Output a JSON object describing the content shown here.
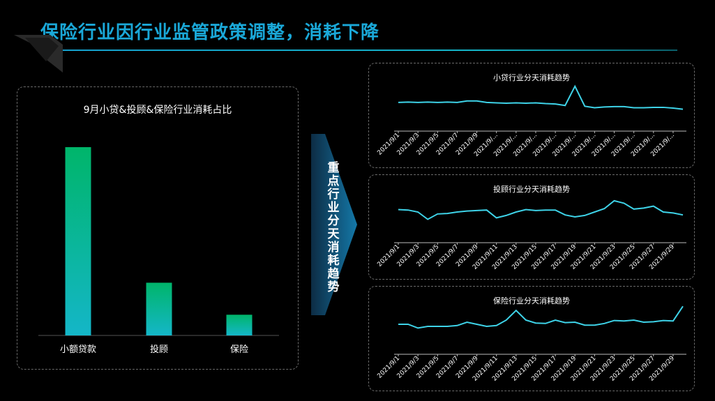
{
  "page": {
    "title": "保险行业因行业监管政策调整，消耗下降",
    "arrow_text": "重点行业分天消耗趋势"
  },
  "colors": {
    "accent": "#1aa8d8",
    "line": "#3ed3e8",
    "bar_top": "#00b56a",
    "bar_bottom": "#14b6c8"
  },
  "chart_data": [
    {
      "type": "bar",
      "title": "9月小贷&投顾&保险行业消耗占比",
      "categories": [
        "小额贷款",
        "投顾",
        "保险"
      ],
      "values": [
        100,
        28,
        11
      ]
    },
    {
      "type": "line",
      "title": "小贷行业分天消耗趋势",
      "x": [
        "2021/9/1",
        "2021/9/2",
        "2021/9/3",
        "2021/9/4",
        "2021/9/5",
        "2021/9/6",
        "2021/9/7",
        "2021/9/8",
        "2021/9/9",
        "2021/9/10",
        "2021/9/11",
        "2021/9/12",
        "2021/9/13",
        "2021/9/14",
        "2021/9/15",
        "2021/9/16",
        "2021/9/17",
        "2021/9/18",
        "2021/9/19",
        "2021/9/20",
        "2021/9/21",
        "2021/9/22",
        "2021/9/23",
        "2021/9/24",
        "2021/9/25",
        "2021/9/26",
        "2021/9/27",
        "2021/9/28",
        "2021/9/29",
        "2021/9/30"
      ],
      "x_tick_labels": [
        "2021/9/1",
        "2021/9/3",
        "2021/9/5",
        "2021/9/7",
        "2021/9/9",
        "2021/9/...",
        "2021/9/...",
        "2021/9/...",
        "2021/9/...",
        "2021/9/...",
        "2021/9/...",
        "2021/9/...",
        "2021/9/...",
        "2021/9/...",
        "2021/9/..."
      ],
      "values": [
        52,
        53,
        52,
        53,
        52,
        53,
        52,
        56,
        56,
        52,
        51,
        50,
        51,
        50,
        51,
        49,
        48,
        44,
        95,
        42,
        38,
        40,
        41,
        41,
        38,
        38,
        39,
        39,
        37,
        34
      ]
    },
    {
      "type": "line",
      "title": "投顾行业分天消耗趋势",
      "x": [
        "2021/9/1",
        "2021/9/2",
        "2021/9/3",
        "2021/9/4",
        "2021/9/5",
        "2021/9/6",
        "2021/9/7",
        "2021/9/8",
        "2021/9/9",
        "2021/9/10",
        "2021/9/11",
        "2021/9/12",
        "2021/9/13",
        "2021/9/14",
        "2021/9/15",
        "2021/9/16",
        "2021/9/17",
        "2021/9/18",
        "2021/9/19",
        "2021/9/20",
        "2021/9/21",
        "2021/9/22",
        "2021/9/23",
        "2021/9/24",
        "2021/9/25",
        "2021/9/26",
        "2021/9/27",
        "2021/9/28",
        "2021/9/29",
        "2021/9/30"
      ],
      "x_tick_labels": [
        "2021/9/1",
        "2021/9/3",
        "2021/9/5",
        "2021/9/7",
        "2021/9/9",
        "2021/9/11",
        "2021/9/13",
        "2021/9/15",
        "2021/9/17",
        "2021/9/19",
        "2021/9/21",
        "2021/9/23",
        "2021/9/25",
        "2021/9/27",
        "2021/9/29"
      ],
      "values": [
        55,
        54,
        50,
        35,
        46,
        47,
        50,
        52,
        53,
        54,
        38,
        43,
        50,
        55,
        53,
        54,
        54,
        44,
        40,
        43,
        50,
        57,
        73,
        68,
        56,
        58,
        62,
        50,
        48,
        44
      ]
    },
    {
      "type": "line",
      "title": "保险行业分天消耗趋势",
      "x": [
        "2021/9/1",
        "2021/9/2",
        "2021/9/3",
        "2021/9/4",
        "2021/9/5",
        "2021/9/6",
        "2021/9/7",
        "2021/9/8",
        "2021/9/9",
        "2021/9/10",
        "2021/9/11",
        "2021/9/12",
        "2021/9/13",
        "2021/9/14",
        "2021/9/15",
        "2021/9/16",
        "2021/9/17",
        "2021/9/18",
        "2021/9/19",
        "2021/9/20",
        "2021/9/21",
        "2021/9/22",
        "2021/9/23",
        "2021/9/24",
        "2021/9/25",
        "2021/9/26",
        "2021/9/27",
        "2021/9/28",
        "2021/9/29",
        "2021/9/30"
      ],
      "x_tick_labels": [
        "2021/9/1",
        "2021/9/3",
        "2021/9/5",
        "2021/9/7",
        "2021/9/9",
        "2021/9/11",
        "2021/9/13",
        "2021/9/15",
        "2021/9/17",
        "2021/9/19",
        "2021/9/21",
        "2021/9/23",
        "2021/9/25",
        "2021/9/27",
        "2021/9/29"
      ],
      "values": [
        40,
        40,
        31,
        35,
        35,
        35,
        37,
        45,
        40,
        35,
        37,
        50,
        73,
        50,
        43,
        42,
        50,
        44,
        45,
        38,
        38,
        42,
        49,
        48,
        50,
        45,
        46,
        49,
        48,
        83
      ]
    }
  ]
}
